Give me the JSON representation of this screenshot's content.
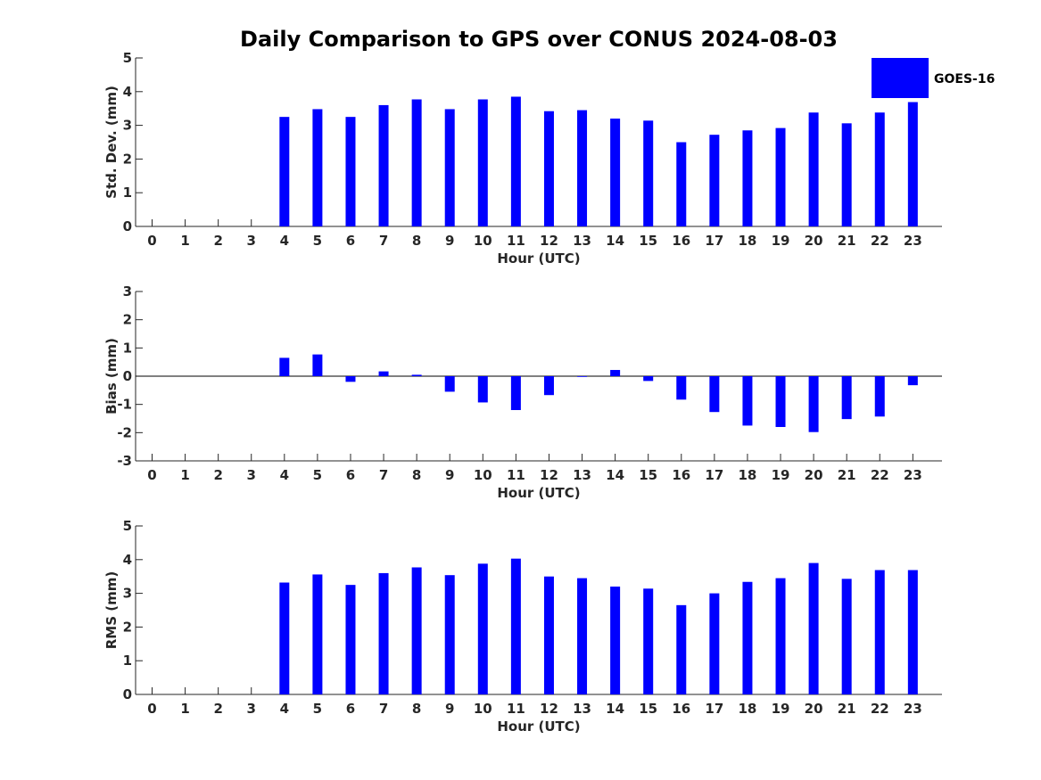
{
  "title": "Daily Comparison to GPS over CONUS 2024-08-03",
  "legend": {
    "label": "GOES-16",
    "color": "#0000ff"
  },
  "chart_data": [
    {
      "type": "bar",
      "name": "std-dev",
      "ylabel": "Std. Dev. (mm)",
      "xlabel": "Hour (UTC)",
      "ylim": [
        0,
        5
      ],
      "yticks": [
        0,
        1,
        2,
        3,
        4,
        5
      ],
      "categories": [
        "0",
        "1",
        "2",
        "3",
        "4",
        "5",
        "6",
        "7",
        "8",
        "9",
        "10",
        "11",
        "12",
        "13",
        "14",
        "15",
        "16",
        "17",
        "18",
        "19",
        "20",
        "21",
        "22",
        "23"
      ],
      "series": [
        {
          "name": "GOES-16",
          "values": [
            null,
            null,
            null,
            null,
            3.25,
            3.48,
            3.25,
            3.6,
            3.77,
            3.48,
            3.77,
            3.85,
            3.42,
            3.45,
            3.2,
            3.14,
            2.5,
            2.72,
            2.85,
            2.92,
            3.38,
            3.06,
            3.38,
            3.69
          ]
        }
      ]
    },
    {
      "type": "bar",
      "name": "bias",
      "ylabel": "Bias (mm)",
      "xlabel": "Hour (UTC)",
      "ylim": [
        -3,
        3
      ],
      "yticks": [
        -3,
        -2,
        -1,
        0,
        1,
        2,
        3
      ],
      "categories": [
        "0",
        "1",
        "2",
        "3",
        "4",
        "5",
        "6",
        "7",
        "8",
        "9",
        "10",
        "11",
        "12",
        "13",
        "14",
        "15",
        "16",
        "17",
        "18",
        "19",
        "20",
        "21",
        "22",
        "23"
      ],
      "series": [
        {
          "name": "GOES-16",
          "values": [
            null,
            null,
            null,
            null,
            0.65,
            0.77,
            -0.2,
            0.17,
            0.05,
            -0.55,
            -0.93,
            -1.2,
            -0.67,
            -0.02,
            0.22,
            -0.17,
            -0.83,
            -1.27,
            -1.75,
            -1.8,
            -1.98,
            -1.52,
            -1.43,
            -0.32
          ]
        }
      ]
    },
    {
      "type": "bar",
      "name": "rms",
      "ylabel": "RMS (mm)",
      "xlabel": "Hour (UTC)",
      "ylim": [
        0,
        5
      ],
      "yticks": [
        0,
        1,
        2,
        3,
        4,
        5
      ],
      "categories": [
        "0",
        "1",
        "2",
        "3",
        "4",
        "5",
        "6",
        "7",
        "8",
        "9",
        "10",
        "11",
        "12",
        "13",
        "14",
        "15",
        "16",
        "17",
        "18",
        "19",
        "20",
        "21",
        "22",
        "23"
      ],
      "series": [
        {
          "name": "GOES-16",
          "values": [
            null,
            null,
            null,
            null,
            3.32,
            3.56,
            3.25,
            3.6,
            3.77,
            3.54,
            3.88,
            4.03,
            3.5,
            3.45,
            3.2,
            3.14,
            2.65,
            3.0,
            3.34,
            3.45,
            3.9,
            3.43,
            3.69,
            3.69
          ]
        }
      ]
    }
  ]
}
